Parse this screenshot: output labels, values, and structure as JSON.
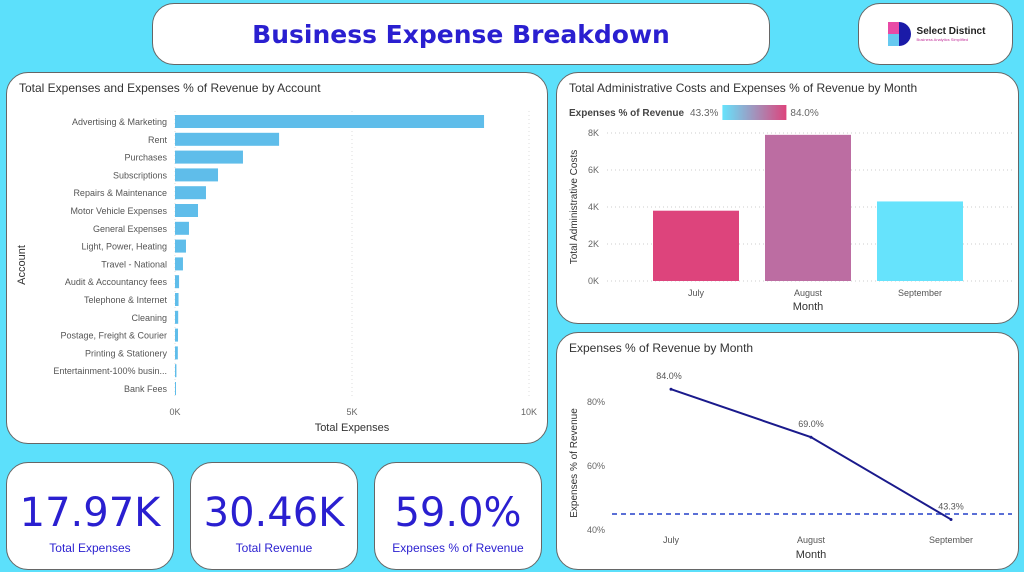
{
  "header": {
    "title": "Business Expense Breakdown",
    "logo_text": "Select Distinct",
    "logo_tagline": "Business Analytics Simplified"
  },
  "colors": {
    "accent": "#2a1fd0",
    "background": "#5ce0fb",
    "bar": "#5fbdea",
    "line": "#1a1a8c",
    "gradient_low": "#66e3fc",
    "gradient_high": "#dd447c"
  },
  "kpis": [
    {
      "value": "17.97K",
      "label": "Total Expenses"
    },
    {
      "value": "30.46K",
      "label": "Total Revenue"
    },
    {
      "value": "59.0%",
      "label": "Expenses % of Revenue"
    }
  ],
  "chart_data": [
    {
      "type": "bar",
      "orientation": "horizontal",
      "title": "Total Expenses and Expenses % of Revenue by Account",
      "xlabel": "Total Expenses",
      "ylabel": "Account",
      "categories": [
        "Advertising & Marketing",
        "Rent",
        "Purchases",
        "Subscriptions",
        "Repairs & Maintenance",
        "Motor Vehicle Expenses",
        "General Expenses",
        "Light, Power, Heating",
        "Travel - National",
        "Audit & Accountancy fees",
        "Telephone & Internet",
        "Cleaning",
        "Postage, Freight & Courier",
        "Printing & Stationery",
        "Entertainment-100% busin...",
        "Bank Fees"
      ],
      "values": [
        8730,
        2940,
        1920,
        1215,
        875,
        650,
        395,
        310,
        225,
        115,
        100,
        90,
        85,
        80,
        40,
        20
      ],
      "xlim": [
        0,
        10000
      ],
      "xticks": [
        "0K",
        "5K",
        "10K"
      ],
      "grid": true
    },
    {
      "type": "bar",
      "title": "Total Administrative Costs and Expenses % of Revenue by Month",
      "xlabel": "Month",
      "ylabel": "Total Administrative Costs",
      "legend_title": "Expenses % of Revenue",
      "legend_min": "43.3%",
      "legend_max": "84.0%",
      "categories": [
        "July",
        "August",
        "September"
      ],
      "values": [
        3800,
        7900,
        4300
      ],
      "color_values": [
        84.0,
        69.0,
        43.3
      ],
      "ylim": [
        0,
        8000
      ],
      "yticks": [
        "0K",
        "2K",
        "4K",
        "6K",
        "8K"
      ],
      "grid": true
    },
    {
      "type": "line",
      "title": "Expenses % of Revenue by Month",
      "xlabel": "Month",
      "ylabel": "Expenses % of Revenue",
      "categories": [
        "July",
        "August",
        "September"
      ],
      "values": [
        84.0,
        69.0,
        43.3
      ],
      "data_labels": [
        "84.0%",
        "69.0%",
        "43.3%"
      ],
      "reference_line": 45,
      "ylim": [
        40,
        86
      ],
      "yticks": [
        "40%",
        "60%",
        "80%"
      ],
      "ytick_values": [
        40,
        60,
        80
      ]
    }
  ]
}
